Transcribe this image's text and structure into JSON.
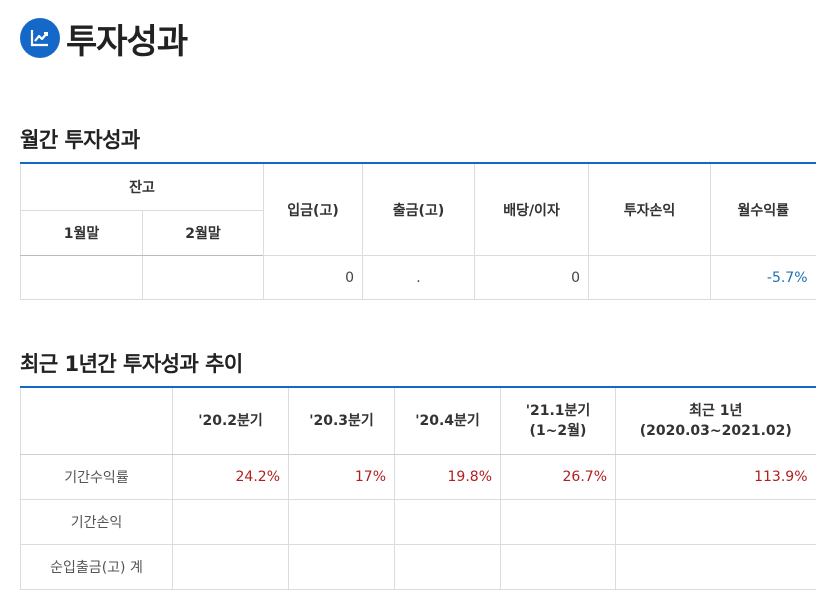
{
  "page": {
    "title": "투자성과"
  },
  "monthly": {
    "section_title": "월간 투자성과",
    "headers": {
      "balance": "잔고",
      "month1": "1월말",
      "month2": "2월말",
      "deposit": "입금(고)",
      "withdraw": "출금(고)",
      "dividend": "배당/이자",
      "pnl": "투자손익",
      "return": "월수익률"
    },
    "row": {
      "month1": "",
      "month2": "",
      "deposit": "0",
      "withdraw": ".",
      "dividend": "0",
      "pnl": "",
      "return": "-5.7%"
    }
  },
  "trend": {
    "section_title": "최근 1년간 투자성과 추이",
    "headers": {
      "blank": "",
      "q1": "'20.2분기",
      "q2": "'20.3분기",
      "q3": "'20.4분기",
      "q4_line1": "'21.1분기",
      "q4_line2": "(1~2월)",
      "y1_line1": "최근 1년",
      "y1_line2": "(2020.03~2021.02)"
    },
    "rows": [
      {
        "label": "기간수익률",
        "values": [
          "24.2%",
          "17%",
          "19.8%",
          "26.7%",
          "113.9%"
        ]
      },
      {
        "label": "기간손익",
        "values": [
          "",
          "",
          "",
          "",
          ""
        ]
      },
      {
        "label": "순입출금(고) 계",
        "values": [
          "",
          "",
          "",
          "",
          ""
        ]
      }
    ]
  },
  "colors": {
    "accent": "#1468c8",
    "positive": "#b02020",
    "negative": "#1f6fb2"
  },
  "icons": {
    "title": "trend-chart-icon"
  }
}
